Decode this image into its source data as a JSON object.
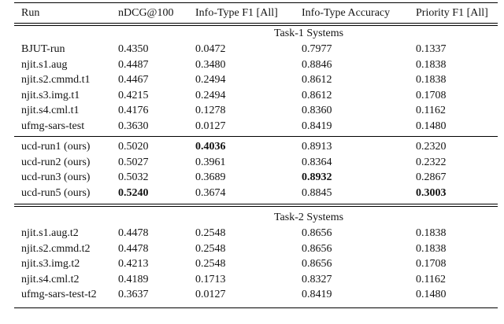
{
  "page": {
    "background": "#ffffff",
    "text_color": "#131313",
    "rule_color": "#000000"
  },
  "table": {
    "columns": [
      "Run",
      "nDCG@100",
      "Info-Type F1 [All]",
      "Info-Type Accuracy",
      "Priority F1 [All]"
    ],
    "column_keys": [
      "run",
      "ndcg-100",
      "info-type-f1-all",
      "info-type-accuracy",
      "priority-f1-all"
    ],
    "sections": [
      {
        "title": "Task-1 Systems",
        "groups": [
          {
            "rows": [
              {
                "values": [
                  "BJUT-run",
                  "0.4350",
                  "0.0472",
                  "0.7977",
                  "0.1337"
                ],
                "bold": []
              },
              {
                "values": [
                  "njit.s1.aug",
                  "0.4487",
                  "0.3480",
                  "0.8846",
                  "0.1838"
                ],
                "bold": []
              },
              {
                "values": [
                  "njit.s2.cmmd.t1",
                  "0.4467",
                  "0.2494",
                  "0.8612",
                  "0.1838"
                ],
                "bold": []
              },
              {
                "values": [
                  "njit.s3.img.t1",
                  "0.4215",
                  "0.2494",
                  "0.8612",
                  "0.1708"
                ],
                "bold": []
              },
              {
                "values": [
                  "njit.s4.cml.t1",
                  "0.4176",
                  "0.1278",
                  "0.8360",
                  "0.1162"
                ],
                "bold": []
              },
              {
                "values": [
                  "ufmg-sars-test",
                  "0.3630",
                  "0.0127",
                  "0.8419",
                  "0.1480"
                ],
                "bold": []
              }
            ]
          },
          {
            "rows": [
              {
                "values": [
                  "ucd-run1 (ours)",
                  "0.5020",
                  "0.4036",
                  "0.8913",
                  "0.2320"
                ],
                "bold": [
                  2
                ]
              },
              {
                "values": [
                  "ucd-run2 (ours)",
                  "0.5027",
                  "0.3961",
                  "0.8364",
                  "0.2322"
                ],
                "bold": []
              },
              {
                "values": [
                  "ucd-run3 (ours)",
                  "0.5032",
                  "0.3689",
                  "0.8932",
                  "0.2867"
                ],
                "bold": [
                  3
                ]
              },
              {
                "values": [
                  "ucd-run5 (ours)",
                  "0.5240",
                  "0.3674",
                  "0.8845",
                  "0.3003"
                ],
                "bold": [
                  1,
                  4
                ]
              }
            ]
          }
        ]
      },
      {
        "title": "Task-2 Systems",
        "groups": [
          {
            "rows": [
              {
                "values": [
                  "njit.s1.aug.t2",
                  "0.4478",
                  "0.2548",
                  "0.8656",
                  "0.1838"
                ],
                "bold": []
              },
              {
                "values": [
                  "njit.s2.cmmd.t2",
                  "0.4478",
                  "0.2548",
                  "0.8656",
                  "0.1838"
                ],
                "bold": []
              },
              {
                "values": [
                  "njit.s3.img.t2",
                  "0.4213",
                  "0.2548",
                  "0.8656",
                  "0.1708"
                ],
                "bold": []
              },
              {
                "values": [
                  "njit.s4.cml.t2",
                  "0.4189",
                  "0.1713",
                  "0.8327",
                  "0.1162"
                ],
                "bold": []
              },
              {
                "values": [
                  "ufmg-sars-test-t2",
                  "0.3637",
                  "0.0127",
                  "0.8419",
                  "0.1480"
                ],
                "bold": []
              }
            ]
          }
        ]
      }
    ]
  }
}
